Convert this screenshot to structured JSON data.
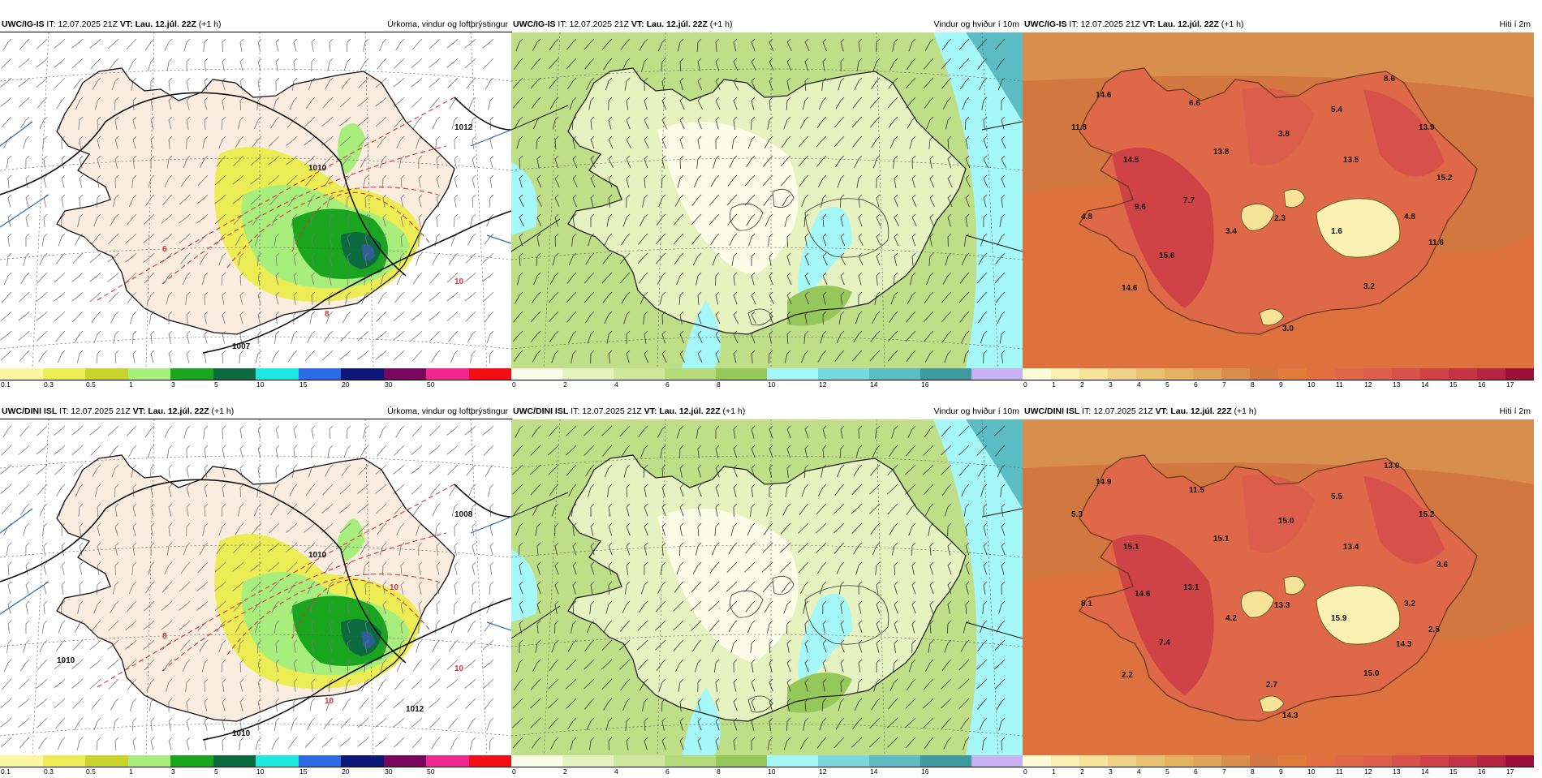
{
  "rows": [
    {
      "model": "UWC/IG-IS",
      "it_label": "IT:",
      "it_value": "12.07.2025 21Z",
      "vt_label": "VT:",
      "vt_value": "Lau. 12.júl. 22Z",
      "lead": "(+1 h)",
      "panels": [
        {
          "title": "Úrkoma, vindur og loftþrýstingur",
          "isobars": [
            "1007",
            "1010",
            "1012"
          ],
          "precip_labels": [
            "6",
            "8",
            "10"
          ]
        },
        {
          "title": "Vindur og hviður í 10m"
        },
        {
          "title": "Hiti í 2m",
          "temps": [
            "14.6",
            "6.6",
            "8.6",
            "11.8",
            "5.4",
            "13.9",
            "3.8",
            "13.8",
            "14.5",
            "13.5",
            "15.2",
            "7.7",
            "9.6",
            "4.8",
            "2.3",
            "3.4",
            "1.6",
            "4.8",
            "11.6",
            "15.6",
            "14.6",
            "3.2",
            "3.0"
          ]
        }
      ]
    },
    {
      "model": "UWC/DINI ISL",
      "it_label": "IT:",
      "it_value": "12.07.2025 21Z",
      "vt_label": "VT:",
      "vt_value": "Lau. 12.júl. 22Z",
      "lead": "(+1 h)",
      "panels": [
        {
          "title": "Úrkoma, vindur og loftþrýstingur",
          "isobars": [
            "1010",
            "1010",
            "1008",
            "1010",
            "1012"
          ],
          "precip_labels": [
            "8",
            "10",
            "10",
            "10"
          ]
        },
        {
          "title": "Vindur og hviður í 10m"
        },
        {
          "title": "Hiti í 2m",
          "temps": [
            "14.9",
            "11.5",
            "13.0",
            "5.3",
            "5.5",
            "15.2",
            "15.0",
            "15.1",
            "15.1",
            "13.4",
            "3.6",
            "13.1",
            "14.6",
            "8.1",
            "13.3",
            "4.2",
            "15.9",
            "3.2",
            "2.5",
            "7.4",
            "2.2",
            "15.0",
            "14.3",
            "14.3",
            "2.7"
          ]
        }
      ]
    }
  ],
  "colorbars": {
    "precip": {
      "ticks": [
        "0.1",
        "0.3",
        "0.5",
        "1",
        "3",
        "5",
        "10",
        "15",
        "20",
        "30",
        "50"
      ],
      "colors": [
        "#fdf6a0",
        "#ecec55",
        "#c9d32c",
        "#a8ee7c",
        "#19a51e",
        "#0c6b3e",
        "#1de8e0",
        "#2d6be5",
        "#0b1876",
        "#7a075e",
        "#f0288e",
        "#f20e14"
      ]
    },
    "wind": {
      "ticks": [
        "0",
        "2",
        "4",
        "6",
        "8",
        "10",
        "12",
        "14",
        "16"
      ],
      "colors": [
        "#fcfde8",
        "#e6f3c0",
        "#cfe79c",
        "#b3d97b",
        "#95c75a",
        "#a6f7f7",
        "#78d8df",
        "#5bbcc4",
        "#3f9aa0",
        "#c8b0f5"
      ]
    },
    "temp": {
      "ticks": [
        "0",
        "1",
        "2",
        "3",
        "4",
        "5",
        "6",
        "7",
        "8",
        "9",
        "10",
        "11",
        "12",
        "13",
        "14",
        "15",
        "16",
        "17"
      ],
      "colors": [
        "#fdfbd5",
        "#fbf1b3",
        "#f6e39a",
        "#efd287",
        "#e8c272",
        "#e3b362",
        "#dda45a",
        "#d88e4d",
        "#d2773f",
        "#e07b3a",
        "#e0703f",
        "#df6848",
        "#dc5e4a",
        "#d8504a",
        "#cf4246",
        "#c43444",
        "#b42640",
        "#9a0f38"
      ]
    }
  }
}
